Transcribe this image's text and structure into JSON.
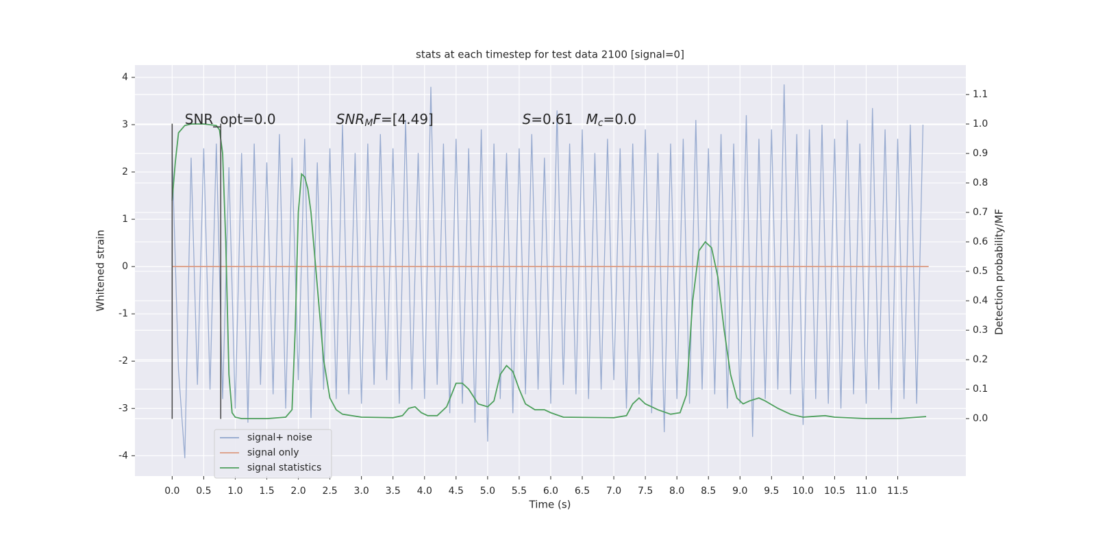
{
  "chart_data": {
    "type": "line",
    "title": "stats at each timestep for test data 2100 [signal=0]",
    "xlabel": "Time (s)",
    "ylabel": "Whitened strain",
    "y2label": "Detection probability/MF",
    "xlim": [
      -0.59,
      12.58
    ],
    "ylim": [
      -4.43,
      4.26
    ],
    "y2lim": [
      -0.195,
      1.2
    ],
    "xticks": [
      {
        "value": 0,
        "label": "0.0"
      },
      0.5,
      {
        "value": 1,
        "label": "1.0"
      },
      1.5,
      {
        "value": 2,
        "label": "2.0"
      },
      2.5,
      {
        "value": 3,
        "label": "3.0"
      },
      3.5,
      {
        "value": 4,
        "label": "4.0"
      },
      4.5,
      {
        "value": 5,
        "label": "5.0"
      },
      5.5,
      {
        "value": 6,
        "label": "6.0"
      },
      6.5,
      {
        "value": 7,
        "label": "7.0"
      },
      7.5,
      {
        "value": 8,
        "label": "8.0"
      },
      8.5,
      {
        "value": 9,
        "label": "9.0"
      },
      9.5,
      {
        "value": 10,
        "label": "10.0"
      },
      10.5,
      {
        "value": 11,
        "label": "11.0"
      },
      11.5
    ],
    "yticks": [
      -4,
      -3,
      -2,
      -1,
      0,
      1,
      2,
      3,
      4
    ],
    "y2ticks": [
      {
        "value": 0,
        "label": "0.0"
      },
      0.1,
      0.2,
      0.3,
      0.4,
      0.5,
      0.6,
      0.7,
      0.8,
      0.9,
      {
        "value": 1,
        "label": "1.0"
      },
      1.1
    ],
    "grid": true,
    "legend": "lower left",
    "series": [
      {
        "name": "signal+ noise",
        "color": "#8fa4cc",
        "axis": "y",
        "x": [
          0,
          0.1,
          0.2,
          0.3,
          0.4,
          0.5,
          0.6,
          0.7,
          0.8,
          0.9,
          1,
          1.1,
          1.2,
          1.3,
          1.4,
          1.5,
          1.6,
          1.7,
          1.8,
          1.9,
          2,
          2.1,
          2.2,
          2.3,
          2.4,
          2.5,
          2.6,
          2.7,
          2.8,
          2.9,
          3,
          3.1,
          3.2,
          3.3,
          3.4,
          3.5,
          3.6,
          3.7,
          3.8,
          3.9,
          4,
          4.1,
          4.2,
          4.3,
          4.4,
          4.5,
          4.6,
          4.7,
          4.8,
          4.9,
          5,
          5.1,
          5.2,
          5.3,
          5.4,
          5.5,
          5.6,
          5.7,
          5.8,
          5.9,
          6,
          6.1,
          6.2,
          6.3,
          6.4,
          6.5,
          6.6,
          6.7,
          6.8,
          6.9,
          7,
          7.1,
          7.2,
          7.3,
          7.4,
          7.5,
          7.6,
          7.7,
          7.8,
          7.9,
          8,
          8.1,
          8.2,
          8.3,
          8.4,
          8.5,
          8.6,
          8.7,
          8.8,
          8.9,
          9,
          9.1,
          9.2,
          9.3,
          9.4,
          9.5,
          9.6,
          9.7,
          9.8,
          9.9,
          10,
          10.1,
          10.2,
          10.3,
          10.4,
          10.5,
          10.6,
          10.7,
          10.8,
          10.9,
          11,
          11.1,
          11.2,
          11.3,
          11.4,
          11.5,
          11.6,
          11.7,
          11.8,
          11.9
        ],
        "values": [
          2.4,
          -2.2,
          -4.05,
          2.3,
          -2.5,
          2.5,
          -2.6,
          2.6,
          -2.8,
          2.1,
          -3.0,
          2.4,
          -3.3,
          2.6,
          -2.5,
          2.2,
          -2.7,
          2.8,
          -3.0,
          2.3,
          -2.4,
          2.7,
          -3.2,
          2.2,
          -2.6,
          2.5,
          -2.8,
          3.0,
          -2.7,
          2.4,
          -2.9,
          2.6,
          -2.5,
          2.8,
          -2.4,
          2.5,
          -2.9,
          3.1,
          -2.6,
          2.4,
          -2.8,
          3.8,
          -2.5,
          2.6,
          -3.1,
          2.7,
          -2.9,
          2.5,
          -3.3,
          2.9,
          -3.7,
          2.6,
          -2.8,
          2.4,
          -3.1,
          2.5,
          -2.7,
          2.8,
          -2.6,
          2.3,
          -2.9,
          3.3,
          -2.5,
          2.6,
          -2.7,
          2.9,
          -2.8,
          2.4,
          -2.6,
          2.7,
          -2.4,
          2.5,
          -3.0,
          2.6,
          -2.7,
          2.9,
          -3.1,
          2.4,
          -3.5,
          2.6,
          -2.8,
          2.7,
          -2.9,
          3.1,
          -2.6,
          2.5,
          -2.7,
          2.8,
          -3.0,
          2.6,
          -2.9,
          3.2,
          -3.6,
          2.7,
          -2.8,
          2.9,
          -2.6,
          3.85,
          -2.7,
          2.8,
          -3.35,
          2.9,
          -2.8,
          3.0,
          -2.9,
          2.7,
          -3.0,
          3.1,
          -2.7,
          2.6,
          -2.9,
          3.35,
          -2.6,
          2.9,
          -3.1,
          2.7,
          -2.8,
          3.0,
          -2.9,
          3.0
        ]
      },
      {
        "name": "signal only",
        "color": "#dd9a80",
        "axis": "y",
        "x": [
          0,
          11.99
        ],
        "values": [
          0,
          0
        ]
      },
      {
        "name": "signal statistics",
        "color": "#4c9f5b",
        "axis": "y2",
        "x": [
          0,
          0.05,
          0.1,
          0.2,
          0.3,
          0.5,
          0.7,
          0.75,
          0.8,
          0.85,
          0.9,
          0.95,
          1,
          1.1,
          1.5,
          1.8,
          1.9,
          1.95,
          2,
          2.05,
          2.1,
          2.15,
          2.2,
          2.3,
          2.4,
          2.5,
          2.6,
          2.7,
          3,
          3.5,
          3.65,
          3.75,
          3.85,
          3.95,
          4.05,
          4.2,
          4.35,
          4.5,
          4.6,
          4.7,
          4.85,
          5,
          5.1,
          5.2,
          5.3,
          5.4,
          5.5,
          5.6,
          5.75,
          5.9,
          6,
          6.2,
          7,
          7.2,
          7.3,
          7.4,
          7.5,
          7.7,
          7.9,
          8.05,
          8.15,
          8.25,
          8.35,
          8.45,
          8.55,
          8.65,
          8.75,
          8.85,
          8.95,
          9.05,
          9.15,
          9.3,
          9.4,
          9.6,
          9.8,
          10,
          10.2,
          10.35,
          10.5,
          11,
          11.5,
          11.95
        ],
        "values": [
          0.74,
          0.87,
          0.97,
          0.995,
          1.0,
          1.0,
          0.995,
          0.98,
          0.9,
          0.6,
          0.15,
          0.02,
          0.005,
          0.0,
          0.0,
          0.005,
          0.03,
          0.3,
          0.7,
          0.83,
          0.82,
          0.78,
          0.7,
          0.45,
          0.2,
          0.07,
          0.03,
          0.015,
          0.005,
          0.003,
          0.01,
          0.035,
          0.04,
          0.02,
          0.01,
          0.01,
          0.04,
          0.12,
          0.12,
          0.1,
          0.05,
          0.04,
          0.06,
          0.15,
          0.18,
          0.16,
          0.1,
          0.05,
          0.03,
          0.03,
          0.02,
          0.005,
          0.003,
          0.01,
          0.05,
          0.07,
          0.05,
          0.03,
          0.015,
          0.02,
          0.08,
          0.4,
          0.57,
          0.6,
          0.58,
          0.48,
          0.3,
          0.15,
          0.07,
          0.05,
          0.06,
          0.07,
          0.06,
          0.035,
          0.015,
          0.005,
          0.008,
          0.01,
          0.005,
          0.0,
          0.0,
          0.007
        ]
      }
    ],
    "vlines": {
      "x": [
        0,
        0.77
      ],
      "ymin": -3.22,
      "ymax": 3.02,
      "color": "#444444"
    },
    "annotations": [
      {
        "x": 0.2,
        "y": 3.1,
        "parts": [
          {
            "text": "SNR_opt=0.0"
          }
        ]
      },
      {
        "x": 2.6,
        "y": 3.1,
        "parts": [
          {
            "text": "SNR",
            "italic": true
          },
          {
            "text": "M",
            "italic": true,
            "sub": true
          },
          {
            "text": "F",
            "italic": true
          },
          {
            "text": "=[4.49]"
          }
        ]
      },
      {
        "x": 5.55,
        "y": 3.1,
        "parts": [
          {
            "text": "S",
            "italic": true
          },
          {
            "text": "=0.61   "
          },
          {
            "text": "M",
            "italic": true
          },
          {
            "text": "c",
            "italic": true,
            "sub": true
          },
          {
            "text": "=0.0"
          }
        ]
      }
    ]
  }
}
